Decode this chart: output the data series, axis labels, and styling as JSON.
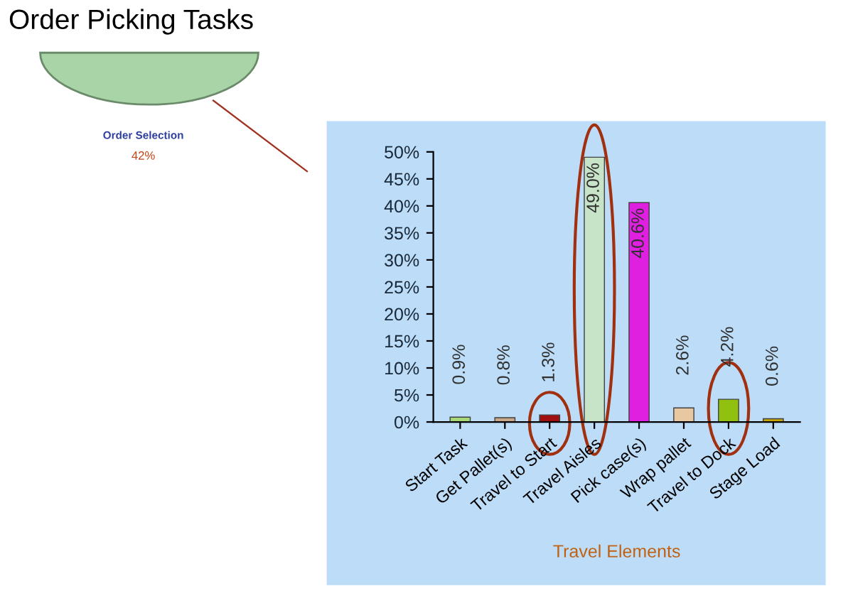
{
  "chart_data": {
    "type": "bar",
    "title": "Order Picking Tasks",
    "xlabel": "Travel Elements",
    "annotations": [
      "Order Selection",
      "42%"
    ],
    "categories": [
      "Start Task",
      "Get Pallet(s)",
      "Travel to Start",
      "Travel Aisles",
      "Pick case(s)",
      "Wrap pallet",
      "Travel to Dock",
      "Stage Load"
    ],
    "values": [
      0.9,
      0.8,
      1.3,
      49.0,
      40.6,
      2.6,
      4.2,
      0.6
    ],
    "value_labels": [
      "0.9%",
      "0.8%",
      "1.3%",
      "49.0%",
      "40.6%",
      "2.6%",
      "4.2%",
      "0.6%"
    ],
    "colors": [
      "#a8d878",
      "#c8a888",
      "#a01010",
      "#c8e4c8",
      "#e020e0",
      "#e8c8a0",
      "#90c010",
      "#c8a800"
    ],
    "ylim": [
      0,
      50
    ],
    "yticks": [
      {
        "value": 0,
        "label": "0%"
      },
      {
        "value": 5,
        "label": "5%"
      },
      {
        "value": 10,
        "label": "10%"
      },
      {
        "value": 15,
        "label": "15%"
      },
      {
        "value": 20,
        "label": "20%"
      },
      {
        "value": 25,
        "label": "25%"
      },
      {
        "value": 30,
        "label": "30%"
      },
      {
        "value": 35,
        "label": "35%"
      },
      {
        "value": 40,
        "label": "40%"
      },
      {
        "value": 45,
        "label": "45%"
      },
      {
        "value": 50,
        "label": "50%"
      }
    ],
    "grid": false,
    "legend": false
  }
}
